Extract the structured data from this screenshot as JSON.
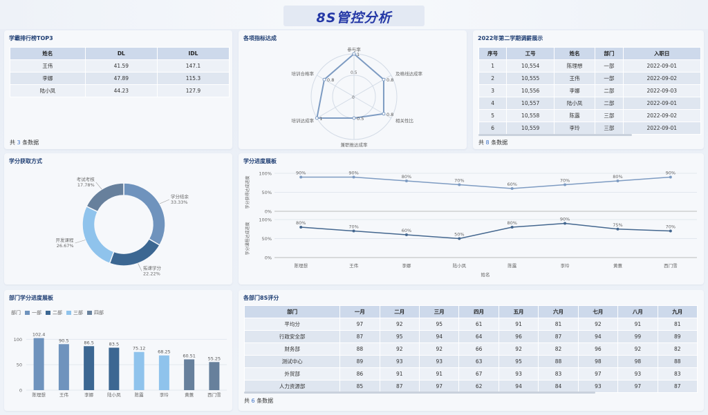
{
  "title": "8S管控分析",
  "colors": {
    "c1": "#6f93bd",
    "c2": "#3c6792",
    "c3": "#8fc3ec",
    "c4": "#67809c",
    "line1": "#7d9bc2",
    "line2": "#43668e"
  },
  "top3": {
    "title": "学霸排行榜TOP3",
    "headers": [
      "姓名",
      "DL",
      "IDL"
    ],
    "rows": [
      [
        "王伟",
        "41.59",
        "147.1"
      ],
      [
        "李娜",
        "47.89",
        "115.3"
      ],
      [
        "陆小凤",
        "44.23",
        "127.9"
      ]
    ],
    "footer_pre": "共",
    "footer_num": "3",
    "footer_post": "条数据"
  },
  "radar": {
    "title": "各项指标达成",
    "labels": [
      "参与率",
      "及格线达成率",
      "相关性比",
      "兼职推达成率",
      "培训达成率",
      "培训合格率"
    ],
    "values": [
      1,
      0.8,
      0.8,
      0.5,
      1,
      0.8
    ],
    "value_labels": [
      "1",
      "0.8",
      "0.8",
      "0.5",
      "1",
      "0.8"
    ],
    "ticks": [
      "0",
      "0.5"
    ]
  },
  "audit": {
    "title": "2022年第二学期调薪展示",
    "headers": [
      "序号",
      "工号",
      "姓名",
      "部门",
      "入职日"
    ],
    "rows": [
      [
        "1",
        "10,554",
        "陈理想",
        "一部",
        "2022-09-01"
      ],
      [
        "2",
        "10,555",
        "王伟",
        "一部",
        "2022-09-02"
      ],
      [
        "3",
        "10,556",
        "李娜",
        "二部",
        "2022-09-03"
      ],
      [
        "4",
        "10,557",
        "陆小凤",
        "二部",
        "2022-09-01"
      ],
      [
        "5",
        "10,558",
        "陈露",
        "三部",
        "2022-09-02"
      ],
      [
        "6",
        "10,559",
        "李玲",
        "三部",
        "2022-09-01"
      ]
    ],
    "footer_pre": "共",
    "footer_num": "8",
    "footer_post": "条数据"
  },
  "donut": {
    "title": "学分获取方式",
    "slices": [
      {
        "name": "学分结余",
        "pct": "33.33%",
        "value": 33.33
      },
      {
        "name": "拓课学分",
        "pct": "22.22%",
        "value": 22.22
      },
      {
        "name": "开发课程",
        "pct": "26.67%",
        "value": 26.67
      },
      {
        "name": "考试考核",
        "pct": "17.78%",
        "value": 17.78
      }
    ]
  },
  "progress": {
    "title": "学分进度展板",
    "y1label": "学分获得达成进度",
    "y2label": "学分课程达成进度",
    "xlabel": "姓名",
    "yticks": [
      "100%",
      "50%",
      "0%"
    ],
    "categories": [
      "陈理想",
      "王伟",
      "李娜",
      "陆小凤",
      "陈露",
      "李玲",
      "黄蕙",
      "西门雪"
    ],
    "series1": [
      90,
      90,
      80,
      70,
      60,
      70,
      80,
      90
    ],
    "series1_labels": [
      "90%",
      "90%",
      "80%",
      "70%",
      "60%",
      "70%",
      "80%",
      "90%"
    ],
    "series2": [
      80,
      70,
      60,
      50,
      80,
      90,
      75,
      70
    ],
    "series2_labels": [
      "80%",
      "70%",
      "60%",
      "50%",
      "80%",
      "90%",
      "75%",
      "70%"
    ]
  },
  "dept": {
    "title": "部门学分进度展板",
    "legend_title": "部门",
    "legend": [
      "一部",
      "二部",
      "三部",
      "四部"
    ],
    "yticks": [
      "100",
      "50",
      "0"
    ],
    "categories": [
      "陈理想",
      "王伟",
      "李娜",
      "陆小凤",
      "陈露",
      "李玲",
      "黄蕙",
      "西门雪"
    ],
    "values": [
      102.4,
      90.5,
      86.5,
      83.5,
      75.12,
      68.25,
      60.51,
      55.25
    ],
    "value_labels": [
      "102.4",
      "90.5",
      "86.5",
      "83.5",
      "75.12",
      "68.25",
      "60.51",
      "55.25"
    ],
    "groups": [
      0,
      0,
      1,
      1,
      2,
      2,
      3,
      3
    ]
  },
  "score": {
    "title": "各部门8S评分",
    "headers": [
      "部门",
      "一月",
      "二月",
      "三月",
      "四月",
      "五月",
      "六月",
      "七月",
      "八月",
      "九月"
    ],
    "rows": [
      [
        "平均分",
        "97",
        "92",
        "95",
        "61",
        "91",
        "81",
        "92",
        "91",
        "81"
      ],
      [
        "行政安全部",
        "87",
        "95",
        "94",
        "64",
        "96",
        "87",
        "94",
        "99",
        "89"
      ],
      [
        "财务部",
        "88",
        "92",
        "92",
        "66",
        "92",
        "82",
        "96",
        "92",
        "82"
      ],
      [
        "测试中心",
        "89",
        "93",
        "93",
        "63",
        "95",
        "88",
        "98",
        "98",
        "88"
      ],
      [
        "外贸部",
        "86",
        "91",
        "91",
        "67",
        "93",
        "83",
        "97",
        "93",
        "83"
      ],
      [
        "人力资源部",
        "85",
        "87",
        "97",
        "62",
        "94",
        "84",
        "93",
        "97",
        "87"
      ]
    ],
    "footer_pre": "共",
    "footer_num": "6",
    "footer_post": "条数据"
  },
  "chart_data": [
    {
      "type": "pie",
      "title": "学分获取方式",
      "categories": [
        "学分结余",
        "拓课学分",
        "开发课程",
        "考试考核"
      ],
      "values": [
        33.33,
        22.22,
        26.67,
        17.78
      ]
    },
    {
      "type": "line",
      "title": "学分进度展板",
      "xlabel": "姓名",
      "categories": [
        "陈理想",
        "王伟",
        "李娜",
        "陆小凤",
        "陈露",
        "李玲",
        "黄蕙",
        "西门雪"
      ],
      "series": [
        {
          "name": "学分获得达成进度",
          "values": [
            90,
            90,
            80,
            70,
            60,
            70,
            80,
            90
          ]
        },
        {
          "name": "学分课程达成进度",
          "values": [
            80,
            70,
            60,
            50,
            80,
            90,
            75,
            70
          ]
        }
      ],
      "ylim": [
        0,
        100
      ]
    },
    {
      "type": "bar",
      "title": "部门学分进度展板",
      "categories": [
        "陈理想",
        "王伟",
        "李娜",
        "陆小凤",
        "陈露",
        "李玲",
        "黄蕙",
        "西门雪"
      ],
      "values": [
        102.4,
        90.5,
        86.5,
        83.5,
        75.12,
        68.25,
        60.51,
        55.25
      ],
      "ylim": [
        0,
        110
      ]
    },
    {
      "type": "radar",
      "title": "各项指标达成",
      "categories": [
        "参与率",
        "及格线达成率",
        "相关性比",
        "兼职推达成率",
        "培训达成率",
        "培训合格率"
      ],
      "values": [
        1,
        0.8,
        0.8,
        0.5,
        1,
        0.8
      ]
    }
  ]
}
